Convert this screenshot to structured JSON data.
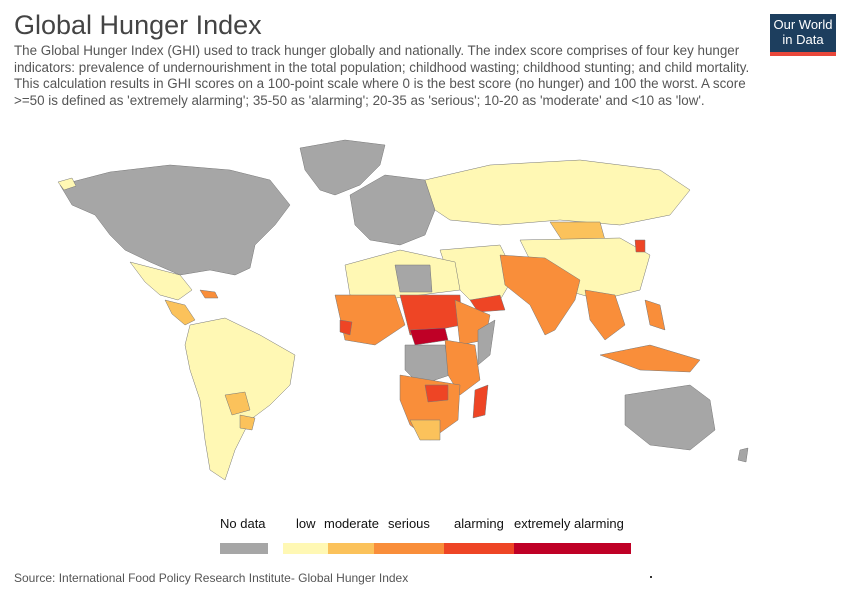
{
  "title": "Global Hunger Index",
  "subtitle": "The Global Hunger Index (GHI) used to track hunger globally and nationally. The index score comprises of four key hunger indicators: prevalence of undernourishment in the total population; childhood wasting; childhood stunting; and child mortality. This calculation results in GHI scores on a 100-point scale where 0 is the best score (no hunger) and 100 the worst. A score >=50 is defined as 'extremely alarming'; 35-50 as 'alarming'; 20-35 as 'serious'; 10-20 as 'moderate' and <10 as 'low'.",
  "logo": {
    "line1": "Our World",
    "line2": "in Data"
  },
  "legend": {
    "no_data": {
      "label": "No data",
      "color": "#a6a6a6"
    },
    "categories": [
      {
        "label": "low",
        "color": "#fff8b4"
      },
      {
        "label": "moderate",
        "color": "#fbc25b"
      },
      {
        "label": "serious",
        "color": "#f98e3a"
      },
      {
        "label": "alarming",
        "color": "#ee4525"
      },
      {
        "label": "extremely alarming",
        "color": "#bf0026"
      }
    ]
  },
  "source": "Source: International Food Policy Research Institute- Global Hunger Index"
}
